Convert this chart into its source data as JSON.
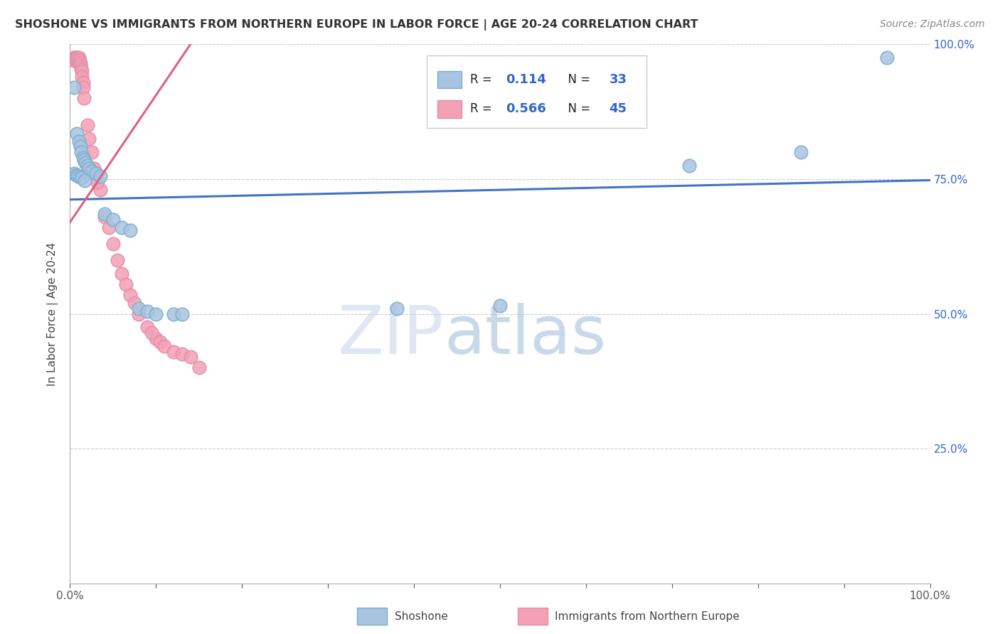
{
  "title": "SHOSHONE VS IMMIGRANTS FROM NORTHERN EUROPE IN LABOR FORCE | AGE 20-24 CORRELATION CHART",
  "source": "Source: ZipAtlas.com",
  "ylabel": "In Labor Force | Age 20-24",
  "xlim": [
    0.0,
    1.0
  ],
  "ylim": [
    0.0,
    1.0
  ],
  "blue_R": 0.114,
  "blue_N": 33,
  "pink_R": 0.566,
  "pink_N": 45,
  "blue_color": "#A8C4E0",
  "pink_color": "#F4A0B5",
  "blue_line_color": "#4472C4",
  "pink_line_color": "#E06080",
  "blue_edge_color": "#7AAED0",
  "pink_edge_color": "#E090A8",
  "blue_x": [
    0.005,
    0.008,
    0.01,
    0.012,
    0.013,
    0.015,
    0.015,
    0.017,
    0.018,
    0.02,
    0.022,
    0.025,
    0.027,
    0.03,
    0.032,
    0.035,
    0.038,
    0.04,
    0.045,
    0.05,
    0.055,
    0.06,
    0.065,
    0.07,
    0.08,
    0.09,
    0.1,
    0.13,
    0.38,
    0.5,
    0.72,
    0.85,
    0.95
  ],
  "blue_y": [
    0.92,
    0.83,
    0.81,
    0.8,
    0.785,
    0.78,
    0.77,
    0.765,
    0.76,
    0.755,
    0.75,
    0.74,
    0.73,
    0.72,
    0.71,
    0.7,
    0.695,
    0.685,
    0.68,
    0.675,
    0.67,
    0.665,
    0.66,
    0.655,
    0.51,
    0.505,
    0.5,
    0.5,
    0.51,
    0.51,
    0.775,
    0.8,
    0.975
  ],
  "pink_x": [
    0.005,
    0.006,
    0.007,
    0.008,
    0.009,
    0.01,
    0.011,
    0.012,
    0.013,
    0.014,
    0.015,
    0.016,
    0.017,
    0.018,
    0.019,
    0.02,
    0.021,
    0.022,
    0.023,
    0.025,
    0.03,
    0.032,
    0.035,
    0.04,
    0.042,
    0.045,
    0.05,
    0.055,
    0.06,
    0.065,
    0.07,
    0.075,
    0.08,
    0.085,
    0.09,
    0.095,
    0.1,
    0.105,
    0.11,
    0.115,
    0.12,
    0.125,
    0.13,
    0.14,
    0.15
  ],
  "pink_y": [
    0.975,
    0.975,
    0.975,
    0.975,
    0.975,
    0.975,
    0.975,
    0.975,
    0.97,
    0.965,
    0.96,
    0.955,
    0.94,
    0.93,
    0.91,
    0.89,
    0.875,
    0.86,
    0.845,
    0.82,
    0.8,
    0.78,
    0.75,
    0.72,
    0.7,
    0.68,
    0.65,
    0.63,
    0.61,
    0.59,
    0.57,
    0.55,
    0.53,
    0.51,
    0.49,
    0.47,
    0.45,
    0.44,
    0.43,
    0.425,
    0.42,
    0.415,
    0.41,
    0.4,
    0.385
  ],
  "watermark_zip_color": "#C8D8EC",
  "watermark_atlas_color": "#A8C0DC"
}
